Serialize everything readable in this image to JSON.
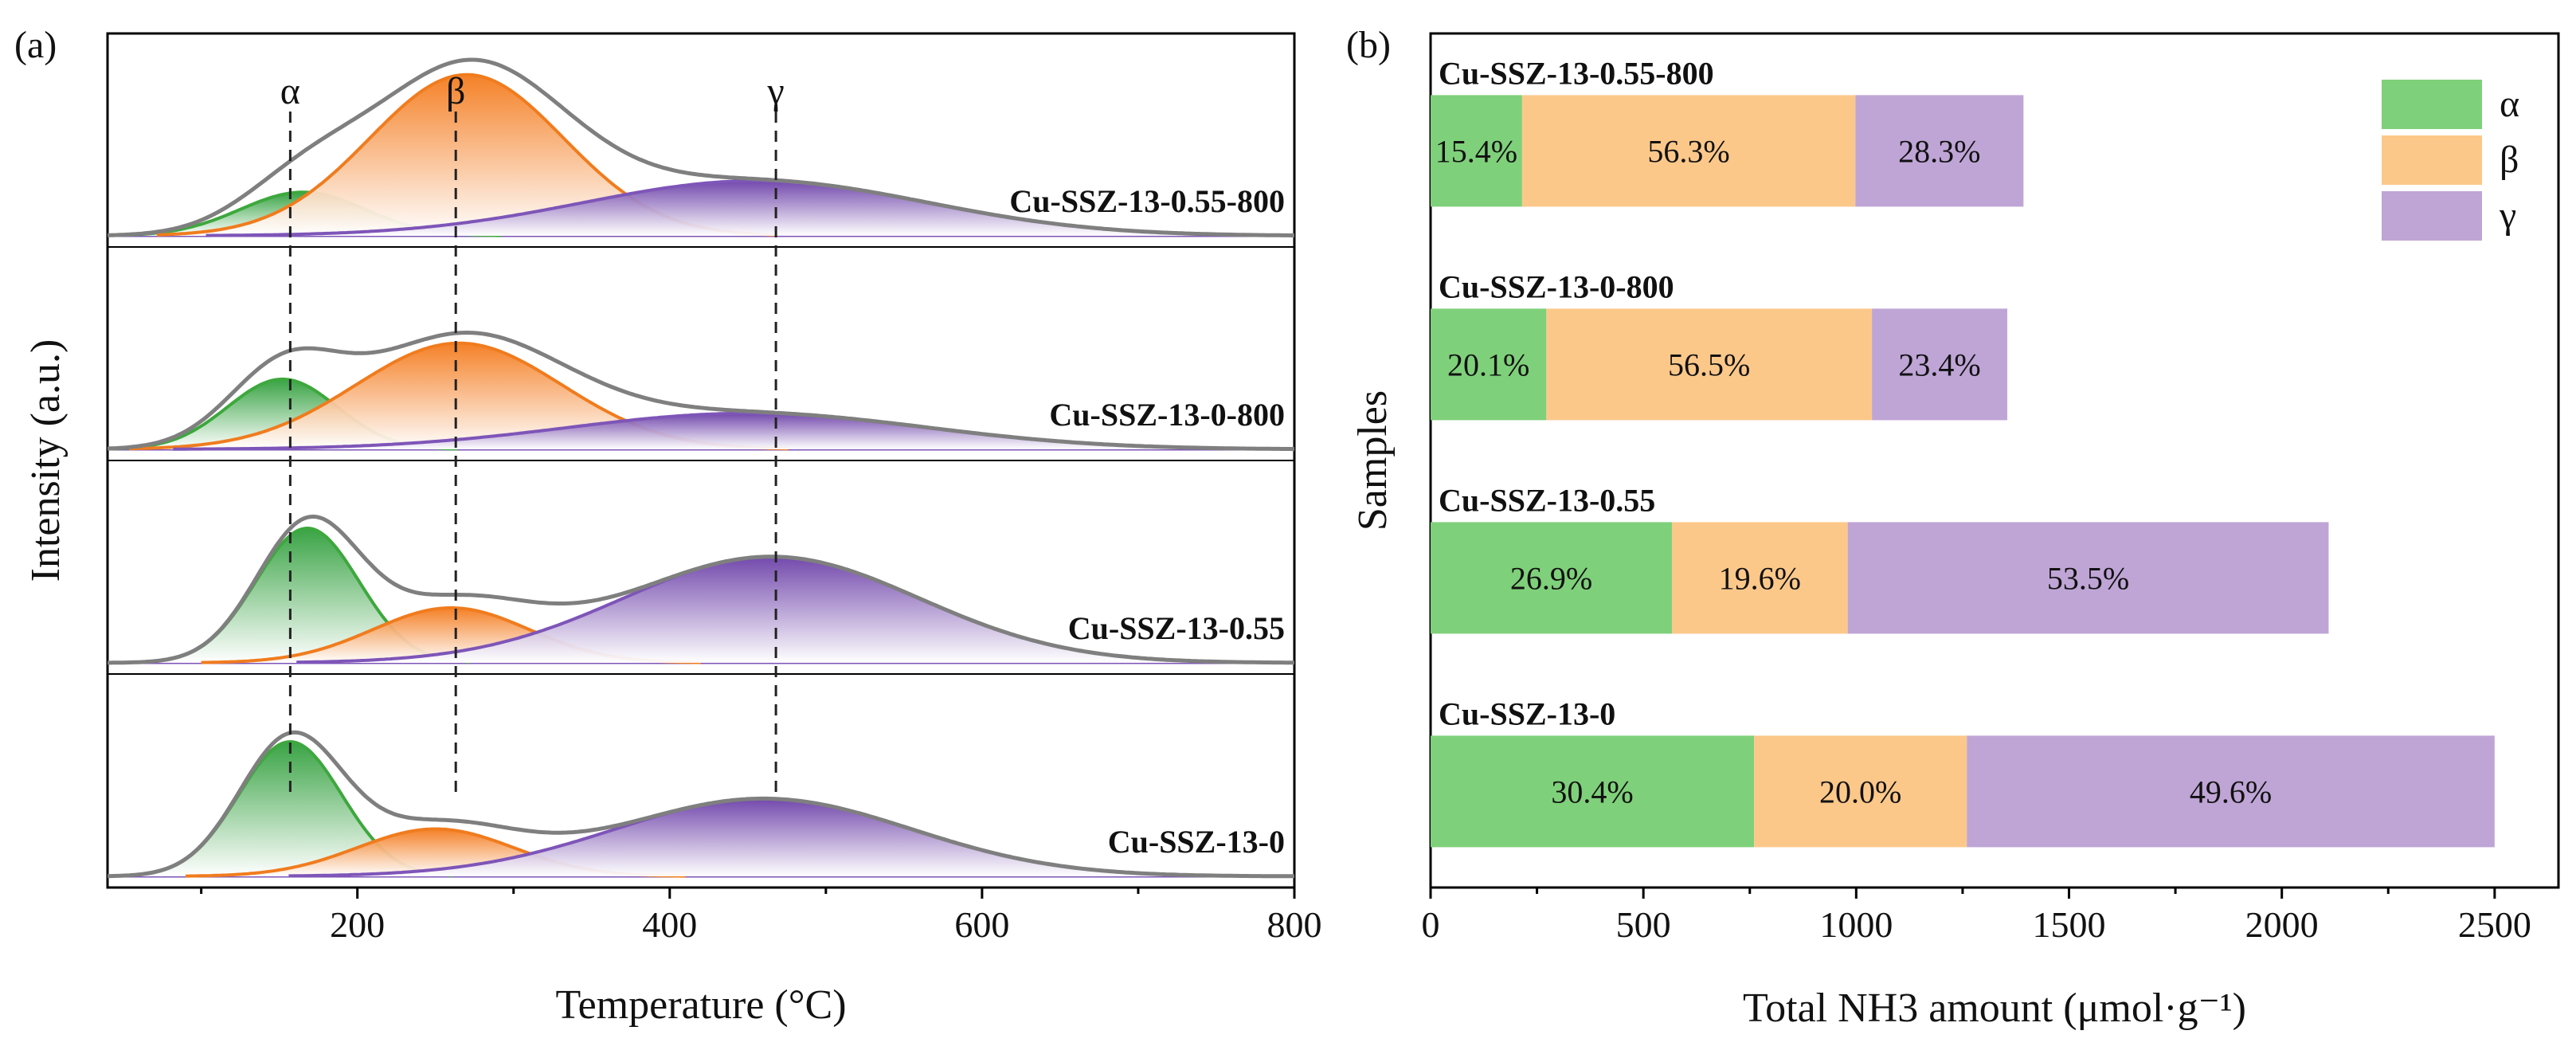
{
  "chart_data": [
    {
      "panel_label": "(a)",
      "type": "line",
      "subtype": "NH3-TPD peak deconvolution (stacked offset)",
      "xlabel": "Temperature (°C)",
      "ylabel": "Intensity (a.u.)",
      "xlim": [
        40,
        800
      ],
      "x_ticks": [
        200,
        400,
        600,
        800
      ],
      "peak_markers": [
        {
          "label": "α",
          "x": 157
        },
        {
          "label": "β",
          "x": 263
        },
        {
          "label": "γ",
          "x": 468
        }
      ],
      "series": [
        {
          "name": "Cu-SSZ-13-0.55-800",
          "peaks": [
            {
              "label": "α",
              "center": 165,
              "height": 0.23,
              "width": 40
            },
            {
              "label": "β",
              "center": 270,
              "height": 0.85,
              "width": 62
            },
            {
              "label": "γ",
              "center": 455,
              "height": 0.29,
              "width": 110
            }
          ]
        },
        {
          "name": "Cu-SSZ-13-0-800",
          "peaks": [
            {
              "label": "α",
              "center": 152,
              "height": 0.37,
              "width": 35
            },
            {
              "label": "β",
              "center": 265,
              "height": 0.56,
              "width": 66
            },
            {
              "label": "γ",
              "center": 450,
              "height": 0.19,
              "width": 115
            }
          ]
        },
        {
          "name": "Cu-SSZ-13-0.55",
          "peaks": [
            {
              "label": "α",
              "center": 168,
              "height": 0.71,
              "width": 33
            },
            {
              "label": "β",
              "center": 260,
              "height": 0.29,
              "width": 50
            },
            {
              "label": "γ",
              "center": 465,
              "height": 0.56,
              "width": 95
            }
          ]
        },
        {
          "name": "Cu-SSZ-13-0",
          "peaks": [
            {
              "label": "α",
              "center": 157,
              "height": 0.71,
              "width": 33
            },
            {
              "label": "β",
              "center": 250,
              "height": 0.25,
              "width": 50
            },
            {
              "label": "γ",
              "center": 460,
              "height": 0.41,
              "width": 95
            }
          ]
        }
      ],
      "colors": {
        "alpha": "#3da83d",
        "beta": "#f07c1e",
        "gamma": "#7e55b8",
        "envelope": "#7f7f7f"
      }
    },
    {
      "panel_label": "(b)",
      "type": "bar",
      "orientation": "horizontal-stacked",
      "xlabel": "Total NH3 amount (μmol·g⁻¹)",
      "ylabel": "Samples",
      "xlim": [
        0,
        2650
      ],
      "x_ticks": [
        0,
        500,
        1000,
        1500,
        2000,
        2500
      ],
      "legend": [
        "α",
        "β",
        "γ"
      ],
      "legend_position": "top-right",
      "colors": {
        "alpha": "#7fd07a",
        "beta": "#fcc88a",
        "gamma": "#bfa5d6"
      },
      "categories": [
        "Cu-SSZ-13-0.55-800",
        "Cu-SSZ-13-0-800",
        "Cu-SSZ-13-0.55",
        "Cu-SSZ-13-0"
      ],
      "series": [
        {
          "name": "α",
          "values": [
            215,
            272,
            567,
            760
          ],
          "labels": [
            "15.4%",
            "20.1%",
            "26.9%",
            "30.4%"
          ]
        },
        {
          "name": "β",
          "values": [
            783,
            765,
            413,
            500
          ],
          "labels": [
            "56.3%",
            "56.5%",
            "19.6%",
            "20.0%"
          ]
        },
        {
          "name": "γ",
          "values": [
            395,
            318,
            1130,
            1240
          ],
          "labels": [
            "28.3%",
            "23.4%",
            "53.5%",
            "49.6%"
          ]
        }
      ]
    }
  ]
}
